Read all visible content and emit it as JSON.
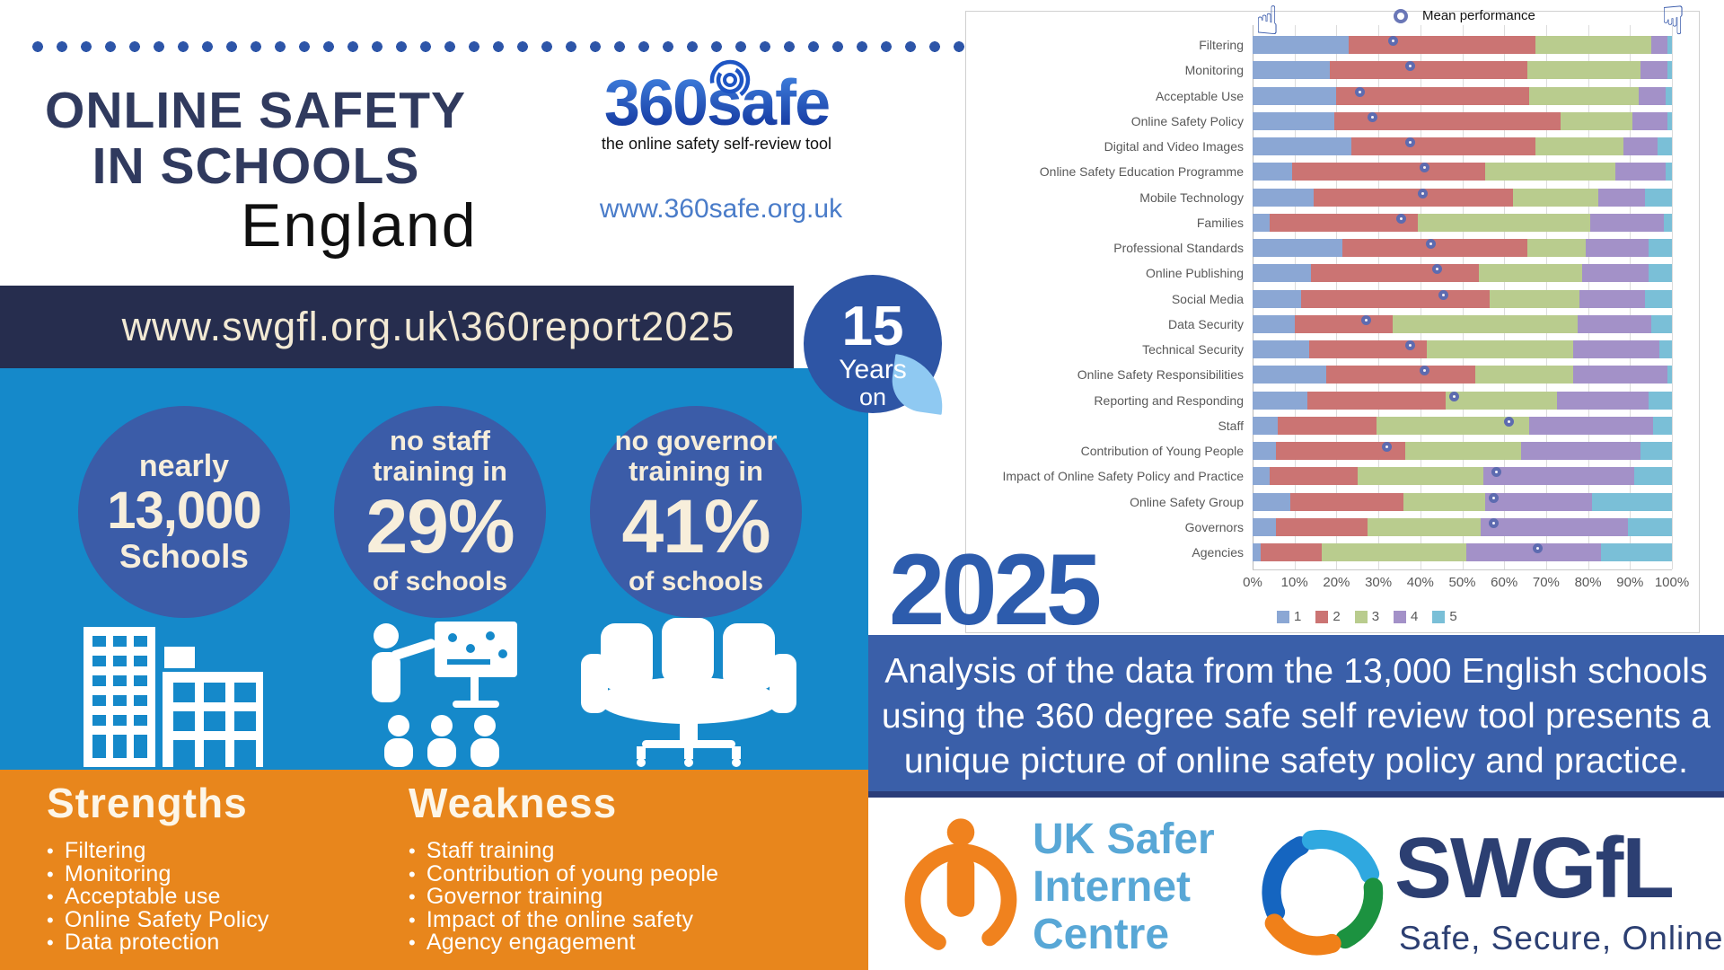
{
  "header": {
    "title_line1": "ONLINE SAFETY",
    "title_line2": "IN SCHOOLS",
    "region": "England",
    "logo_360safe": {
      "part1": "360",
      "part2": "safe",
      "tagline": "the online safety self-review tool",
      "url": "www.360safe.org.uk"
    },
    "report_url": "www.swgfl.org.uk\\360report2025",
    "badge": {
      "number": "15",
      "line1": "Years",
      "line2": "on"
    }
  },
  "stats": [
    {
      "top": "nearly",
      "value": "13,000",
      "bottom": "Schools",
      "icon": "school-buildings-icon"
    },
    {
      "top": "no staff training in",
      "value": "29%",
      "bottom": "of schools",
      "icon": "staff-training-icon"
    },
    {
      "top": "no governor training in",
      "value": "41%",
      "bottom": "of schools",
      "icon": "governors-meeting-icon"
    }
  ],
  "strengths": {
    "heading": "Strengths",
    "items": [
      "Filtering",
      "Monitoring",
      "Acceptable use",
      "Online Safety Policy",
      "Data protection"
    ]
  },
  "weakness": {
    "heading": "Weakness",
    "items": [
      "Staff training",
      "Contribution of young people",
      "Governor training",
      "Impact of the online safety",
      "Agency engagement"
    ]
  },
  "year": "2025",
  "analysis": {
    "lines": [
      "Analysis of the data from the 13,000 English schools",
      "using the 360 degree safe self review tool presents a",
      "unique picture of online safety policy and practice."
    ]
  },
  "footer": {
    "uksic": {
      "lines": [
        "UK Safer",
        "Internet",
        "Centre"
      ]
    },
    "swgfl": {
      "name": "SWGfL",
      "tagline": "Safe, Secure, Online"
    }
  },
  "colors": {
    "accent_navy": "#303a5e",
    "banner_navy": "#262d4e",
    "bright_blue": "#1589ca",
    "circle_navy": "#3b5ca8",
    "orange": "#e8861c",
    "analysis_blue": "#3a5fa9",
    "year_blue": "#2d5cad",
    "uksic_orange": "#f0821e",
    "uksic_blue": "#58a7d6",
    "swgfl_navy": "#2c3f72"
  },
  "chart_data": {
    "type": "bar",
    "orientation": "horizontal-stacked",
    "legend_top": "Mean performance",
    "xlim": [
      0,
      100
    ],
    "x_ticks": [
      "0%",
      "10%",
      "20%",
      "30%",
      "40%",
      "50%",
      "60%",
      "70%",
      "80%",
      "90%",
      "100%"
    ],
    "grid": true,
    "legend_position": "bottom",
    "categories": [
      "Filtering",
      "Monitoring",
      "Acceptable Use",
      "Online Safety Policy",
      "Digital and Video Images",
      "Online Safety Education Programme",
      "Mobile Technology",
      "Families",
      "Professional Standards",
      "Online Publishing",
      "Social Media",
      "Data Security",
      "Technical Security",
      "Online Safety Responsibilities",
      "Reporting and Responding",
      "Staff",
      "Contribution of Young People",
      "Impact of Online Safety Policy and Practice",
      "Online Safety Group",
      "Governors",
      "Agencies"
    ],
    "series": [
      {
        "name": "1",
        "color": "#8ba7d4",
        "values": [
          23,
          18.5,
          20,
          19.5,
          23.5,
          9.5,
          14.5,
          4,
          21.5,
          14,
          11.5,
          10,
          13.5,
          17.5,
          13,
          6,
          5.5,
          4,
          9,
          5.5,
          2
        ]
      },
      {
        "name": "2",
        "color": "#cb7473",
        "values": [
          44.5,
          47,
          46,
          54,
          44,
          46,
          47.5,
          35.5,
          44,
          40,
          45,
          23.5,
          28,
          35.5,
          33,
          23.5,
          31,
          21,
          27,
          22,
          14.5
        ]
      },
      {
        "name": "3",
        "color": "#b9cc8e",
        "values": [
          27.5,
          27,
          26,
          17,
          21,
          31,
          20.5,
          41,
          14,
          24.5,
          21.5,
          44,
          35,
          23.5,
          26.5,
          36.5,
          27.5,
          30,
          19.5,
          27,
          34.5
        ]
      },
      {
        "name": "4",
        "color": "#a391c8",
        "values": [
          4,
          6.5,
          6.5,
          8.5,
          8,
          12,
          11,
          17.5,
          15,
          16,
          15.5,
          17.5,
          20.5,
          22.5,
          22,
          29.5,
          28.5,
          36,
          25.5,
          35,
          32
        ]
      },
      {
        "name": "5",
        "color": "#7abfd7",
        "values": [
          1,
          1,
          1.5,
          1,
          3.5,
          1.5,
          6.5,
          2,
          5.5,
          5.5,
          6.5,
          5,
          3,
          1,
          5.5,
          4.5,
          7.5,
          9,
          19,
          10.5,
          17
        ]
      }
    ],
    "mean_performance": [
      34.5,
      38.5,
      26.5,
      29.5,
      38.5,
      42,
      41.5,
      36.5,
      43.5,
      45,
      46.5,
      28,
      38.5,
      42,
      49,
      62,
      33,
      59,
      58.5,
      58.5,
      69
    ],
    "mean_marker_color": "#5d6bb0"
  }
}
